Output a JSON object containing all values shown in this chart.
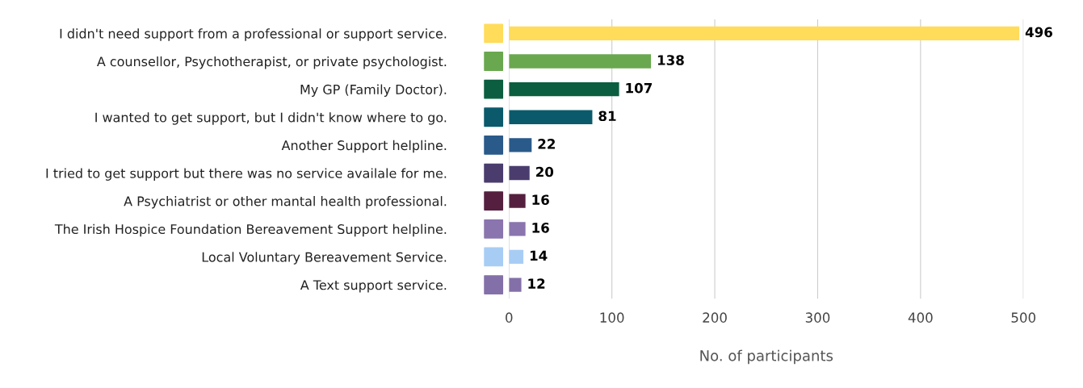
{
  "chart_data": {
    "type": "bar",
    "orientation": "horizontal",
    "xlabel": "No. of participants",
    "categories": [
      "I didn't need support from a professional or support service.",
      "A counsellor, Psychotherapist, or private psychologist.",
      "My GP (Family Doctor).",
      "I wanted to get support, but I didn't know where to go.",
      "Another Support helpline.",
      "I tried to get support but there was no service availale for me.",
      "A Psychiatrist or other mantal health professional.",
      "The Irish Hospice Foundation Bereavement Support helpline.",
      "Local Voluntary Bereavement Service.",
      "A Text support service."
    ],
    "values": [
      496,
      138,
      107,
      81,
      22,
      20,
      16,
      16,
      14,
      12
    ],
    "colors": [
      "#ffdc5a",
      "#6aa84f",
      "#0b5e3f",
      "#0b5a6b",
      "#2a5a8a",
      "#4a3d6e",
      "#55203f",
      "#8a75ae",
      "#a8cdf5",
      "#8470a8"
    ],
    "xlim": [
      0,
      500
    ],
    "xticks": [
      0,
      100,
      200,
      300,
      400,
      500
    ],
    "grid": "x",
    "data_labels": true
  }
}
